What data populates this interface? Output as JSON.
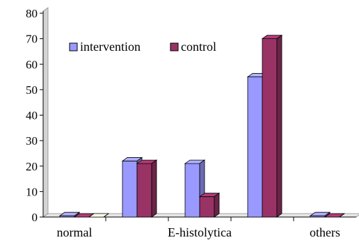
{
  "chart_data": {
    "type": "bar",
    "style": "3d-clustered-column",
    "categories": [
      "normal",
      "",
      "E-histolytica",
      "",
      "others"
    ],
    "series": [
      {
        "name": "intervention",
        "color": "#9999ff",
        "values": [
          0.5,
          22,
          21,
          55,
          0.5
        ]
      },
      {
        "name": "control",
        "color": "#993366",
        "values": [
          0,
          21,
          8,
          70,
          0
        ]
      }
    ],
    "extra_marks": [
      {
        "category_index": 0,
        "color": "#ffffcc",
        "value": 0
      }
    ],
    "ylim": [
      0,
      80
    ],
    "yticks": [
      "0",
      "10",
      "20",
      "30",
      "40",
      "50",
      "60",
      "70",
      "80"
    ],
    "grid": false,
    "legend_position": "top-left-inside",
    "title": "",
    "xlabel": "",
    "ylabel": ""
  }
}
